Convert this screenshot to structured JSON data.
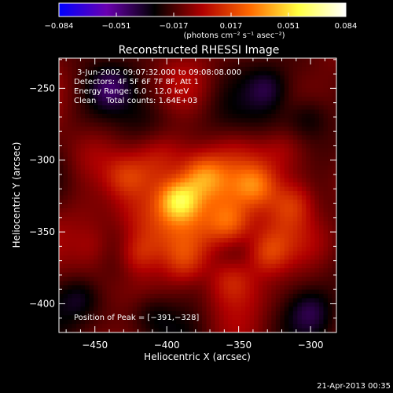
{
  "colorbar": {
    "ticks": [
      "−0.084",
      "−0.051",
      "−0.017",
      "0.017",
      "0.051",
      "0.084"
    ],
    "unit_label": "(photons cm⁻² s⁻¹ asec⁻²)",
    "range": [
      -0.084,
      0.084
    ],
    "colormap": [
      "#0000ff",
      "#6a00b0",
      "#000000",
      "#b00000",
      "#ff6a00",
      "#ffff40",
      "#ffffff"
    ]
  },
  "chart_data": {
    "type": "heatmap",
    "title": "Reconstructed RHESSI Image",
    "xlabel": "Heliocentric X (arcsec)",
    "ylabel": "Heliocentric Y (arcsec)",
    "xlim": [
      -475,
      -282
    ],
    "ylim": [
      -420,
      -229
    ],
    "xticks": [
      -450,
      -400,
      -350,
      -300
    ],
    "yticks": [
      -250,
      -300,
      -350,
      -400
    ],
    "xtick_labels": [
      "−450",
      "−400",
      "−350",
      "−300"
    ],
    "ytick_labels": [
      "−250",
      "−300",
      "−350",
      "−400"
    ],
    "peak_position": [
      -391,
      -328
    ],
    "sources": [
      {
        "x": -391,
        "y": -328,
        "amplitude": 0.084
      },
      {
        "x": -376,
        "y": -312,
        "amplitude": 0.045
      },
      {
        "x": -338,
        "y": -318,
        "amplitude": 0.04
      },
      {
        "x": -355,
        "y": -345,
        "amplitude": 0.035
      },
      {
        "x": -420,
        "y": -366,
        "amplitude": 0.03
      },
      {
        "x": -330,
        "y": -365,
        "amplitude": 0.03
      },
      {
        "x": -312,
        "y": -330,
        "amplitude": 0.025
      },
      {
        "x": -430,
        "y": -312,
        "amplitude": 0.028
      },
      {
        "x": -388,
        "y": -372,
        "amplitude": 0.025
      },
      {
        "x": -355,
        "y": -383,
        "amplitude": 0.018
      },
      {
        "x": -450,
        "y": -360,
        "amplitude": 0.015
      },
      {
        "x": -320,
        "y": -290,
        "amplitude": 0.012
      },
      {
        "x": -440,
        "y": -250,
        "amplitude": -0.03
      },
      {
        "x": -330,
        "y": -250,
        "amplitude": -0.028
      },
      {
        "x": -460,
        "y": -395,
        "amplitude": -0.025
      },
      {
        "x": -300,
        "y": -405,
        "amplitude": -0.022
      },
      {
        "x": -410,
        "y": -405,
        "amplitude": -0.018
      },
      {
        "x": -300,
        "y": -270,
        "amplitude": -0.02
      }
    ]
  },
  "annotations": {
    "time_range": "3-Jun-2002 09:07:32.000 to 09:08:08.000",
    "detectors": "Detectors: 4F 5F 6F 7F 8F, Att 1",
    "energy": "Energy Range: 6.0 - 12.0 keV",
    "clean": "Clean    Total counts: 1.64E+03",
    "peak": "Position of Peak = [−391,−328]"
  },
  "footer": {
    "timestamp": "21-Apr-2013 00:35"
  }
}
